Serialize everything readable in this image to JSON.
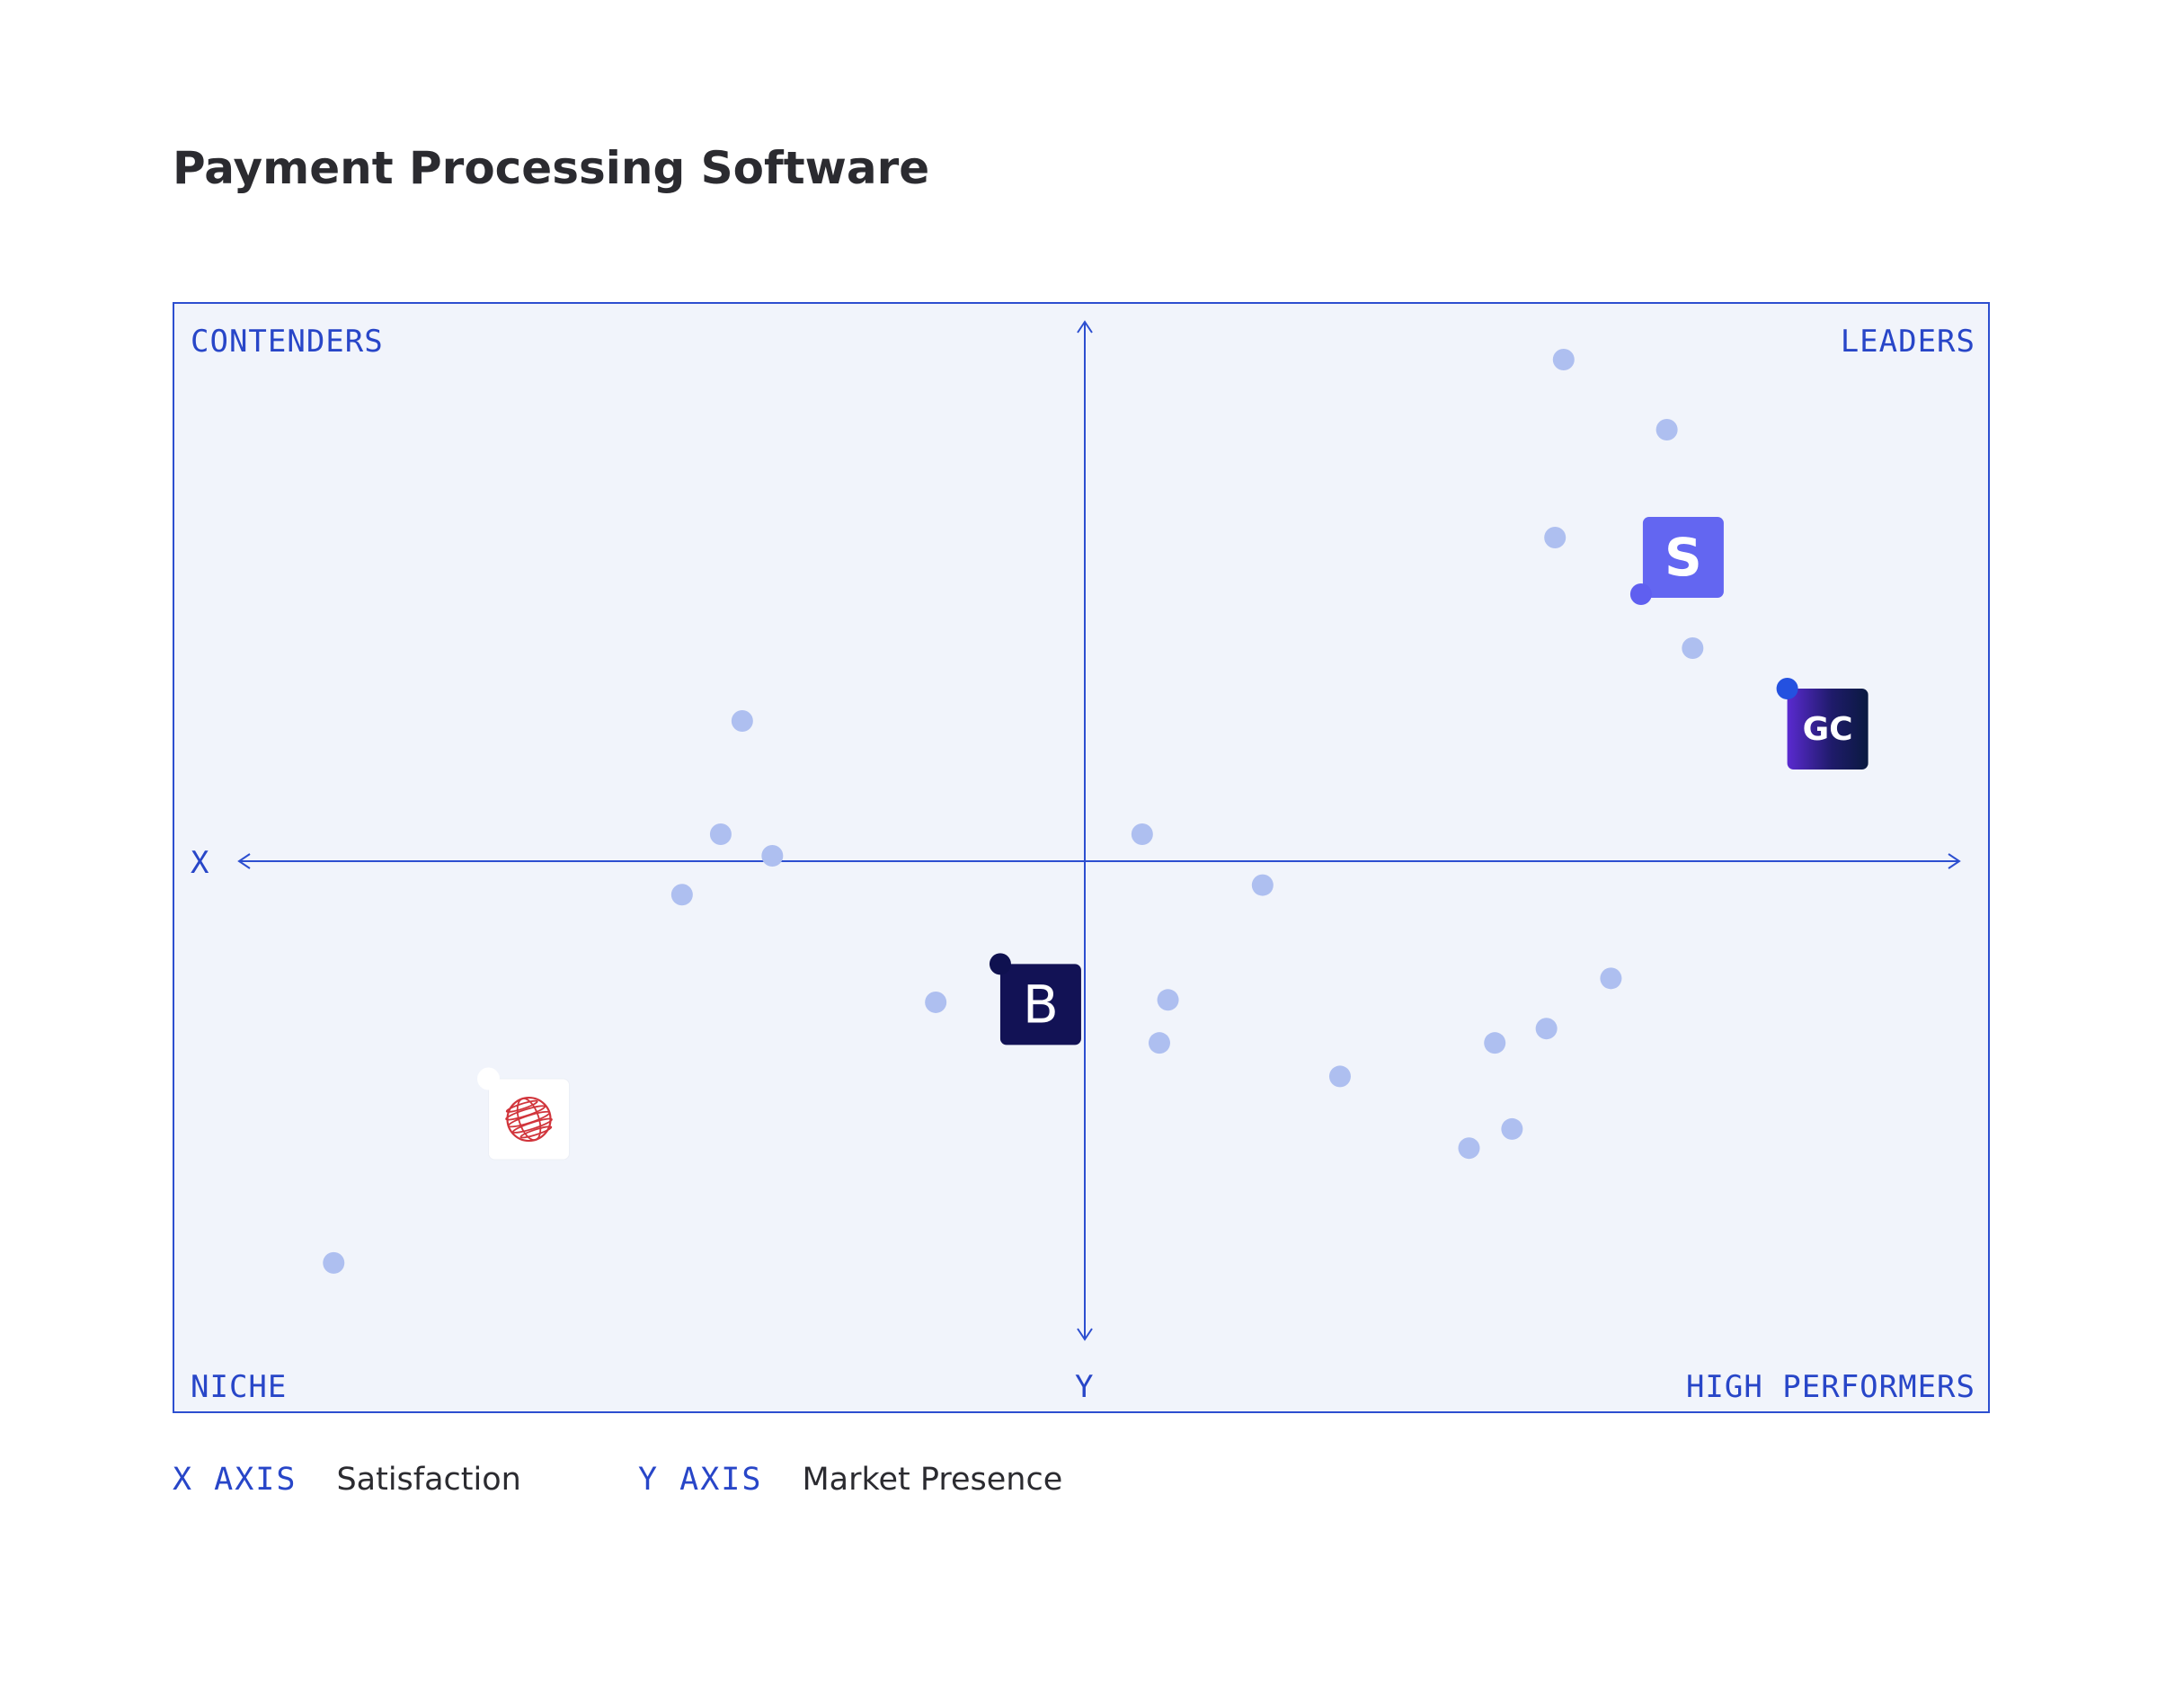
{
  "page": {
    "title": "Payment Processing Software"
  },
  "quadrants": {
    "top_left": "CONTENDERS",
    "top_right": "LEADERS",
    "bottom_left": "NICHE",
    "bottom_right": "HIGH PERFORMERS"
  },
  "axis_markers": {
    "x": "X",
    "y": "Y"
  },
  "legend": {
    "x_key": "X AXIS",
    "x_value": "Satisfaction",
    "y_key": "Y AXIS",
    "y_value": "Market Presence"
  },
  "colors": {
    "frame_border": "#2d4fd0",
    "frame_fill": "#f1f4fb",
    "axis_line": "#2d4fd0",
    "dot": "#aebff0",
    "label_blue": "#2846c8"
  },
  "chart_data": {
    "type": "scatter",
    "title": "Payment Processing Software",
    "xlabel": "Satisfaction",
    "ylabel": "Market Presence",
    "xlim": [
      -100,
      100
    ],
    "ylim": [
      -100,
      100
    ],
    "grid": false,
    "points": [
      {
        "x": 54.0,
        "y": 93.0
      },
      {
        "x": 66.0,
        "y": 80.0
      },
      {
        "x": 53.0,
        "y": 60.0
      },
      {
        "x": 69.0,
        "y": 39.5
      },
      {
        "x": 5.0,
        "y": 5.0
      },
      {
        "x": 19.0,
        "y": -5.0
      },
      {
        "x": -41.5,
        "y": 26.0
      },
      {
        "x": -44.0,
        "y": 5.0
      },
      {
        "x": -48.5,
        "y": -7.0
      },
      {
        "x": -38.0,
        "y": 1.0
      },
      {
        "x": -19.0,
        "y": -29.5
      },
      {
        "x": 8.0,
        "y": -29.0
      },
      {
        "x": 7.0,
        "y": -38.0
      },
      {
        "x": 28.0,
        "y": -45.0
      },
      {
        "x": 46.0,
        "y": -38.0
      },
      {
        "x": 52.0,
        "y": -35.0
      },
      {
        "x": 59.5,
        "y": -24.5
      },
      {
        "x": 48.0,
        "y": -56.0
      },
      {
        "x": 43.0,
        "y": -60.0
      },
      {
        "x": -89.0,
        "y": -84.0
      }
    ],
    "featured": [
      {
        "id": "stripe",
        "icon": "stripe-logo-icon",
        "letter": "S",
        "x": 63.0,
        "y": 49.5,
        "marker_color": "#5f5ff0",
        "tile_color": "#6366f1",
        "text_color": "#ffffff"
      },
      {
        "id": "gocardless",
        "icon": "gocardless-logo-icon",
        "letter": "GC",
        "x": 80.0,
        "y": 32.0,
        "marker_color": "#2451e0",
        "tile_color": "#1b1d5a",
        "text_color": "#ffffff"
      },
      {
        "id": "braintree",
        "icon": "braintree-logo-icon",
        "letter": "B",
        "x": -11.5,
        "y": -21.5,
        "marker_color": "#0f1150",
        "tile_color": "#121255",
        "text_color": "#ffffff"
      },
      {
        "id": "worldpay",
        "icon": "worldpay-globe-icon",
        "letter": "",
        "x": -71.0,
        "y": -45.5,
        "marker_color": "#ffffff",
        "tile_color": "#ffffff",
        "text_color": "#d1353c"
      }
    ]
  }
}
